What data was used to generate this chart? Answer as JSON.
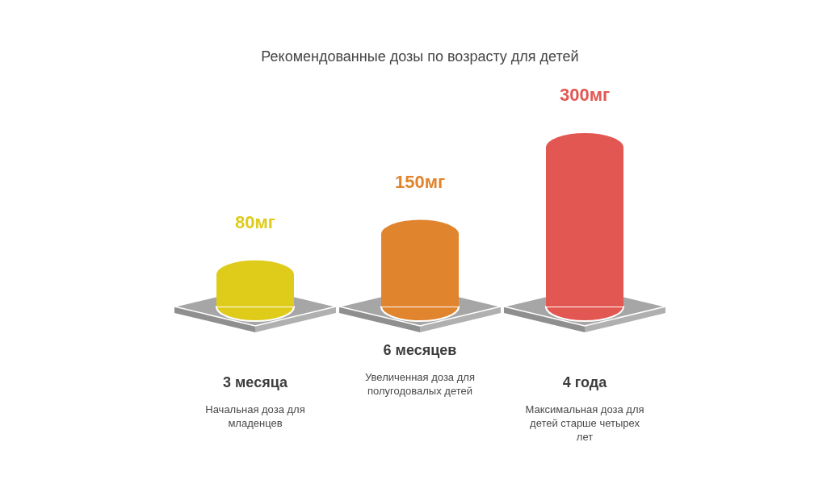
{
  "chart_data": {
    "type": "bar",
    "title": "Рекомендованные дозы по возрасту для детей",
    "categories": [
      "3 месяца",
      "6 месяцев",
      "4 года"
    ],
    "values": [
      80,
      150,
      300
    ],
    "colors": [
      "#dfcc1a",
      "#e0842e",
      "#e35753"
    ],
    "value_labels": [
      "80мг",
      "150мг",
      "300мг"
    ],
    "annotations": [
      "Начальная доза для младенцев",
      "Увеличенная доза для полугодовалых детей",
      "Максимальная доза для детей старше четырех лет"
    ]
  }
}
